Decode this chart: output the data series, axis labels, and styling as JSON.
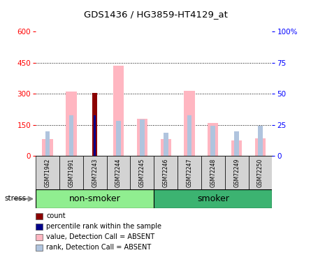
{
  "title": "GDS1436 / HG3859-HT4129_at",
  "samples": [
    "GSM71942",
    "GSM71991",
    "GSM72243",
    "GSM72244",
    "GSM72245",
    "GSM72246",
    "GSM72247",
    "GSM72248",
    "GSM72249",
    "GSM72250"
  ],
  "groups": [
    {
      "label": "non-smoker",
      "indices": [
        0,
        1,
        2,
        3,
        4
      ],
      "color": "#90ee90"
    },
    {
      "label": "smoker",
      "indices": [
        5,
        6,
        7,
        8,
        9
      ],
      "color": "#3cb371"
    }
  ],
  "absent_value": [
    80,
    310,
    0,
    435,
    180,
    80,
    315,
    160,
    75,
    85
  ],
  "absent_rank": [
    120,
    195,
    0,
    170,
    175,
    110,
    195,
    145,
    120,
    145
  ],
  "count_value": [
    0,
    0,
    305,
    0,
    0,
    0,
    0,
    0,
    0,
    0
  ],
  "pct_rank_value": [
    0,
    0,
    195,
    0,
    0,
    0,
    0,
    0,
    0,
    0
  ],
  "ylim_left": [
    0,
    600
  ],
  "yticks_left": [
    0,
    150,
    300,
    450,
    600
  ],
  "ylim_right": [
    0,
    100
  ],
  "yticks_right": [
    0,
    25,
    50,
    75,
    100
  ],
  "color_absent_value": "#ffb6c1",
  "color_absent_rank": "#b0c4de",
  "color_count": "#8b0000",
  "color_pct_rank": "#00008b",
  "group_label_fontsize": 9,
  "stress_label": "stress",
  "legend_items": [
    {
      "color": "#8b0000",
      "label": "count"
    },
    {
      "color": "#00008b",
      "label": "percentile rank within the sample"
    },
    {
      "color": "#ffb6c1",
      "label": "value, Detection Call = ABSENT"
    },
    {
      "color": "#b0c4de",
      "label": "rank, Detection Call = ABSENT"
    }
  ]
}
